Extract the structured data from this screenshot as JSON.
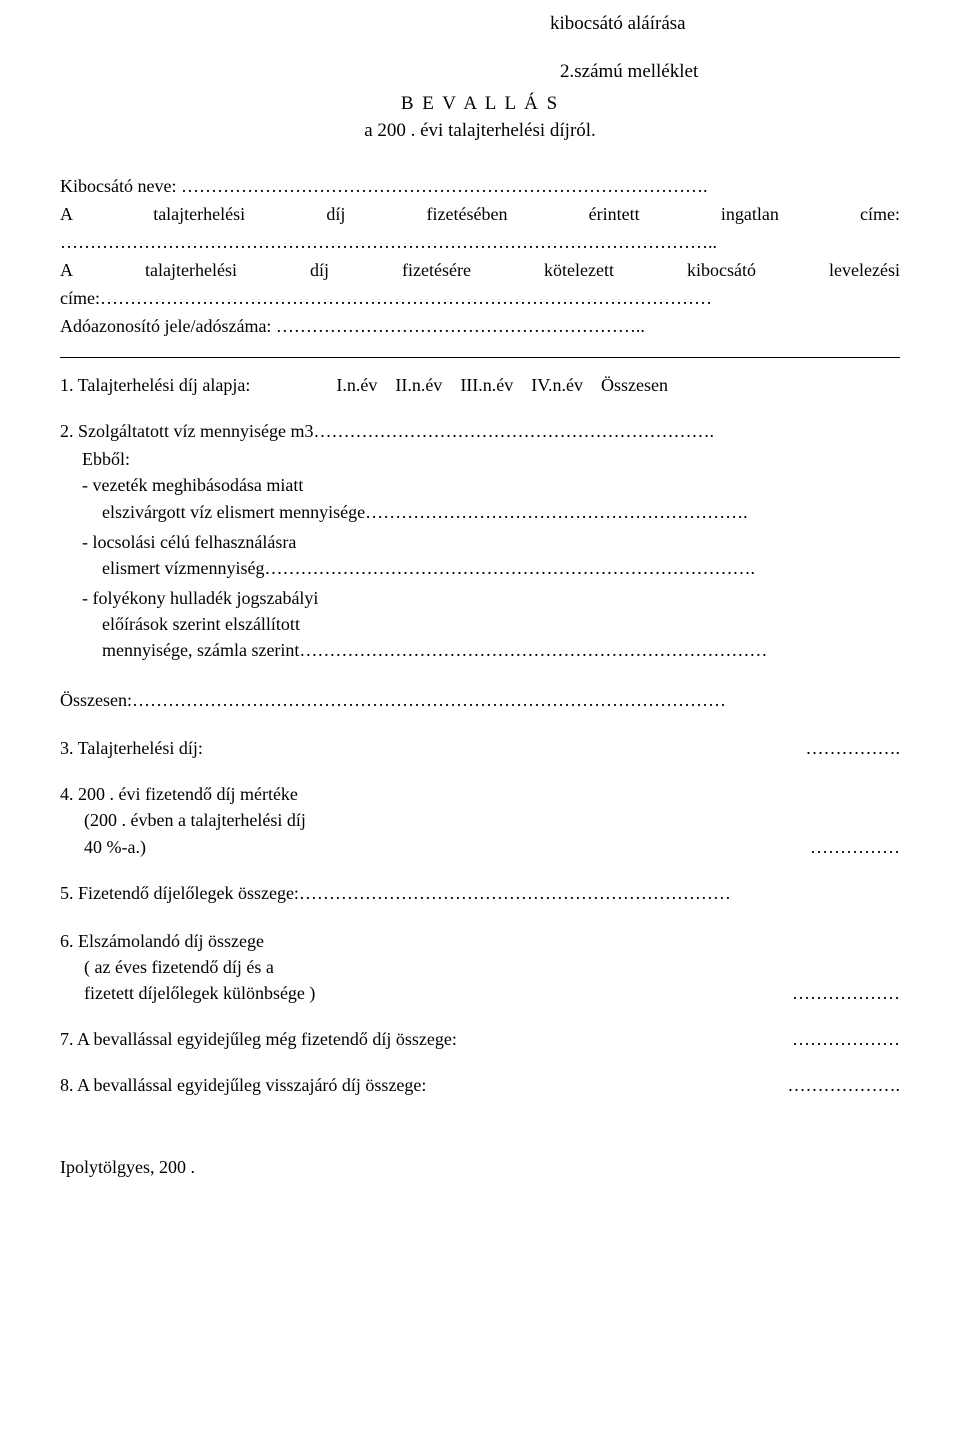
{
  "signature_line": "kibocsátó aláírása",
  "attachment_label": "2.számú melléklet",
  "title": "B E V A L L Á S",
  "subtitle": "a 200 . évi talajterhelési díjról.",
  "issuer_name_label": "Kibocsátó neve: …………………………………………………………………………….",
  "property_address_line_justified": "A    talajterhelési    díj    fizetésében    érintett    ingatlan    címe:",
  "property_address_dots": "………………………………………………………………………………………………..",
  "mailing_address_line_justified": "A  talajterhelési  díj  fizetésére  kötelezett  kibocsátó  levelezési",
  "mailing_address_label_dots": "címe:…………………………………………………………………………………………",
  "tax_id_label": "Adóazonosító jele/adószáma: ……………………………………………………..",
  "section1_label": "1. Talajterhelési díj alapja:",
  "columns": {
    "c1": "I.n.év",
    "c2": "II.n.év",
    "c3": "III.n.év",
    "c4": "IV.n.év",
    "c5": "Összesen"
  },
  "section2_line": "2. Szolgáltatott víz mennyisége m3………………………………………………………….",
  "ebbol_label": "Ebből:",
  "sub_a_1": "-  vezeték meghibásodása miatt",
  "sub_a_2": "elszivárgott víz elismert mennyisége……………………………………………………….",
  "sub_b_1": "-  locsolási célú felhasználásra",
  "sub_b_2": "elismert vízmennyiség……………………………………………………………………….",
  "sub_c_1": "-  folyékony hulladék jogszabályi",
  "sub_c_2": "előírások szerint elszállított",
  "sub_c_3": "mennyisége, számla szerint……………………………………………………………………",
  "osszesen_line": "Összesen:………………………………………………………………………………………",
  "section3_label": "3. Talajterhelési díj:",
  "section3_dots": "…………….",
  "section4_1": "4. 200 . évi fizetendő díj mértéke",
  "section4_2": "(200 . évben a talajterhelési díj",
  "section4_3_label": " 40 %-a.)",
  "section4_3_dots": "……………",
  "section5_line": "5. Fizetendő díjelőlegek összege:………………………………………………………………",
  "section6_1": "6. Elszámolandó díj összege",
  "section6_2": "( az éves fizetendő díj és a",
  "section6_3_label": " fizetett díjelőlegek különbsége )",
  "section6_3_dots": "………………",
  "section7_label": "7. A bevallással egyidejűleg még fizetendő díj összege:",
  "section7_dots": "………………",
  "section8_label": "8. A bevallással egyidejűleg visszajáró díj összege:",
  "section8_dots": "……………….",
  "place_date": "Ipolytölgyes, 200 ."
}
